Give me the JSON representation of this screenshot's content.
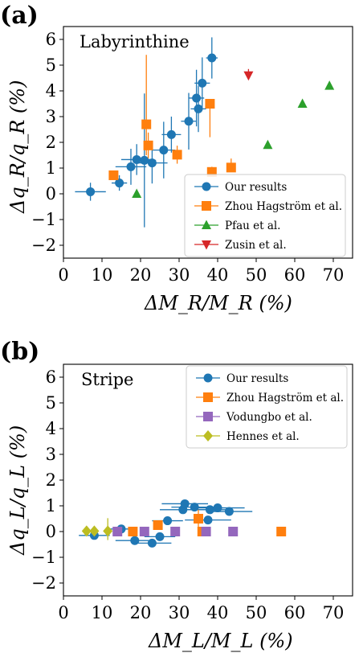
{
  "colors": {
    "blue": "#1f77b4",
    "orange": "#ff7f0e",
    "green": "#2ca02c",
    "red": "#d62728",
    "purple": "#9467bd",
    "olive": "#bcbd22"
  },
  "chart_data": [
    {
      "type": "scatter",
      "panel_label": "(a)",
      "annotation": "Labyrinthine",
      "xlabel": "ΔM_R/M_R (%)",
      "ylabel": "Δq_R/q_R (%)",
      "xlim": [
        0,
        75
      ],
      "ylim": [
        -2.5,
        6.5
      ],
      "xticks": [
        "0",
        "10",
        "20",
        "30",
        "40",
        "50",
        "60",
        "70"
      ],
      "yticks": [
        "−2",
        "−1",
        "0",
        "1",
        "2",
        "3",
        "4",
        "5",
        "6"
      ],
      "grid": false,
      "legend_position": "lower-right",
      "series": [
        {
          "name": "Our results",
          "marker": "circle",
          "color": "blue",
          "points": [
            {
              "x": 7,
              "y": 0.08,
              "xerr": 4,
              "yerr": 0.35
            },
            {
              "x": 14.5,
              "y": 0.42,
              "xerr": 2,
              "yerr": 0.3
            },
            {
              "x": 17.5,
              "y": 1.05,
              "xerr": 4,
              "yerr": 0.7
            },
            {
              "x": 19,
              "y": 1.33,
              "xerr": 4,
              "yerr": 0.6
            },
            {
              "x": 21,
              "y": 1.3,
              "xerr": 3,
              "yerr": 2.6
            },
            {
              "x": 23,
              "y": 1.2,
              "xerr": 4,
              "yerr": 0.8
            },
            {
              "x": 26,
              "y": 1.7,
              "xerr": 3,
              "yerr": 1.1
            },
            {
              "x": 28,
              "y": 2.3,
              "xerr": 2.5,
              "yerr": 0.7
            },
            {
              "x": 32.5,
              "y": 2.82,
              "xerr": 2,
              "yerr": 1.1
            },
            {
              "x": 34.5,
              "y": 3.72,
              "xerr": 2,
              "yerr": 1.1
            },
            {
              "x": 35,
              "y": 3.3,
              "xerr": 2,
              "yerr": 0.9
            },
            {
              "x": 36,
              "y": 4.3,
              "xerr": 2,
              "yerr": 1.0
            },
            {
              "x": 38.5,
              "y": 5.28,
              "xerr": 1.5,
              "yerr": 0.8
            }
          ]
        },
        {
          "name": "Zhou Hagström et al.",
          "marker": "square",
          "color": "orange",
          "points": [
            {
              "x": 13,
              "y": 0.72,
              "yerr_low": 0.1,
              "yerr_high": 0.1
            },
            {
              "x": 21.5,
              "y": 2.7,
              "yerr_low": 1.2,
              "yerr_high": 2.7
            },
            {
              "x": 22,
              "y": 1.88,
              "yerr_low": 0.5,
              "yerr_high": 0.5
            },
            {
              "x": 29.5,
              "y": 1.52,
              "yerr_low": 0.35,
              "yerr_high": 0.35
            },
            {
              "x": 38,
              "y": 3.5,
              "yerr_low": 1.3,
              "yerr_high": 0.1
            },
            {
              "x": 38.5,
              "y": 0.85,
              "yerr_low": 0.1,
              "yerr_high": 0.2
            },
            {
              "x": 43.5,
              "y": 1.02,
              "yerr_low": 0.1,
              "yerr_high": 0.35
            }
          ]
        },
        {
          "name": "Pfau et al.",
          "marker": "triangle-up",
          "color": "green",
          "points": [
            {
              "x": 19,
              "y": 0.0
            },
            {
              "x": 53,
              "y": 1.9
            },
            {
              "x": 62,
              "y": 3.5
            },
            {
              "x": 69,
              "y": 4.2
            }
          ]
        },
        {
          "name": "Zusin et al.",
          "marker": "triangle-down",
          "color": "red",
          "points": [
            {
              "x": 48,
              "y": 4.6,
              "yerr_low": 0.1,
              "yerr_high": 0.25
            }
          ]
        }
      ]
    },
    {
      "type": "scatter",
      "panel_label": "(b)",
      "annotation": "Stripe",
      "xlabel": "ΔM_L/M_L (%)",
      "ylabel": "Δq_L/q_L (%)",
      "xlim": [
        0,
        75
      ],
      "ylim": [
        -2.5,
        6.5
      ],
      "xticks": [
        "0",
        "10",
        "20",
        "30",
        "40",
        "50",
        "60",
        "70"
      ],
      "yticks": [
        "−2",
        "−1",
        "0",
        "1",
        "2",
        "3",
        "4",
        "5",
        "6"
      ],
      "grid": false,
      "legend_position": "upper-right",
      "series": [
        {
          "name": "Our results",
          "marker": "circle",
          "color": "blue",
          "points": [
            {
              "x": 8,
              "y": -0.15,
              "xerr": 4,
              "yerr": 0.1
            },
            {
              "x": 15,
              "y": 0.1,
              "xerr": 3,
              "yerr": 0.1
            },
            {
              "x": 18.5,
              "y": -0.35,
              "xerr": 5,
              "yerr": 0.1
            },
            {
              "x": 23,
              "y": -0.45,
              "xerr": 5,
              "yerr": 0.1
            },
            {
              "x": 25,
              "y": -0.2,
              "xerr": 4,
              "yerr": 0.1
            },
            {
              "x": 27,
              "y": 0.42,
              "xerr": 4,
              "yerr": 0.1
            },
            {
              "x": 31,
              "y": 0.85,
              "xerr": 6,
              "yerr": 0.15
            },
            {
              "x": 31.5,
              "y": 1.08,
              "xerr": 6,
              "yerr": 0.15
            },
            {
              "x": 34,
              "y": 0.95,
              "xerr": 6,
              "yerr": 0.15
            },
            {
              "x": 37.5,
              "y": 0.45,
              "xerr": 6,
              "yerr": 0.15
            },
            {
              "x": 38,
              "y": 0.85,
              "xerr": 6,
              "yerr": 0.15
            },
            {
              "x": 40,
              "y": 0.92,
              "xerr": 7,
              "yerr": 0.15
            },
            {
              "x": 43,
              "y": 0.78,
              "xerr": 6,
              "yerr": 0.15
            }
          ]
        },
        {
          "name": "Zhou Hagström et al.",
          "marker": "square",
          "color": "orange",
          "points": [
            {
              "x": 18,
              "y": 0.0
            },
            {
              "x": 24.5,
              "y": 0.25
            },
            {
              "x": 35,
              "y": 0.5,
              "yerr_low": 0.35,
              "yerr_high": 0.35
            },
            {
              "x": 36,
              "y": 0.0
            },
            {
              "x": 56.5,
              "y": 0.0
            }
          ]
        },
        {
          "name": "Vodungbo et al.",
          "marker": "square",
          "color": "purple",
          "points": [
            {
              "x": 14,
              "y": 0.0
            },
            {
              "x": 21,
              "y": 0.0
            },
            {
              "x": 29,
              "y": 0.0
            },
            {
              "x": 37,
              "y": 0.0
            },
            {
              "x": 44,
              "y": 0.0
            }
          ]
        },
        {
          "name": "Hennes et al.",
          "marker": "diamond",
          "color": "olive",
          "points": [
            {
              "x": 6,
              "y": 0.02
            },
            {
              "x": 8,
              "y": 0.02
            },
            {
              "x": 11.5,
              "y": 0.02,
              "yerr_low": 0.35,
              "yerr_high": 0.5
            }
          ]
        }
      ]
    }
  ]
}
